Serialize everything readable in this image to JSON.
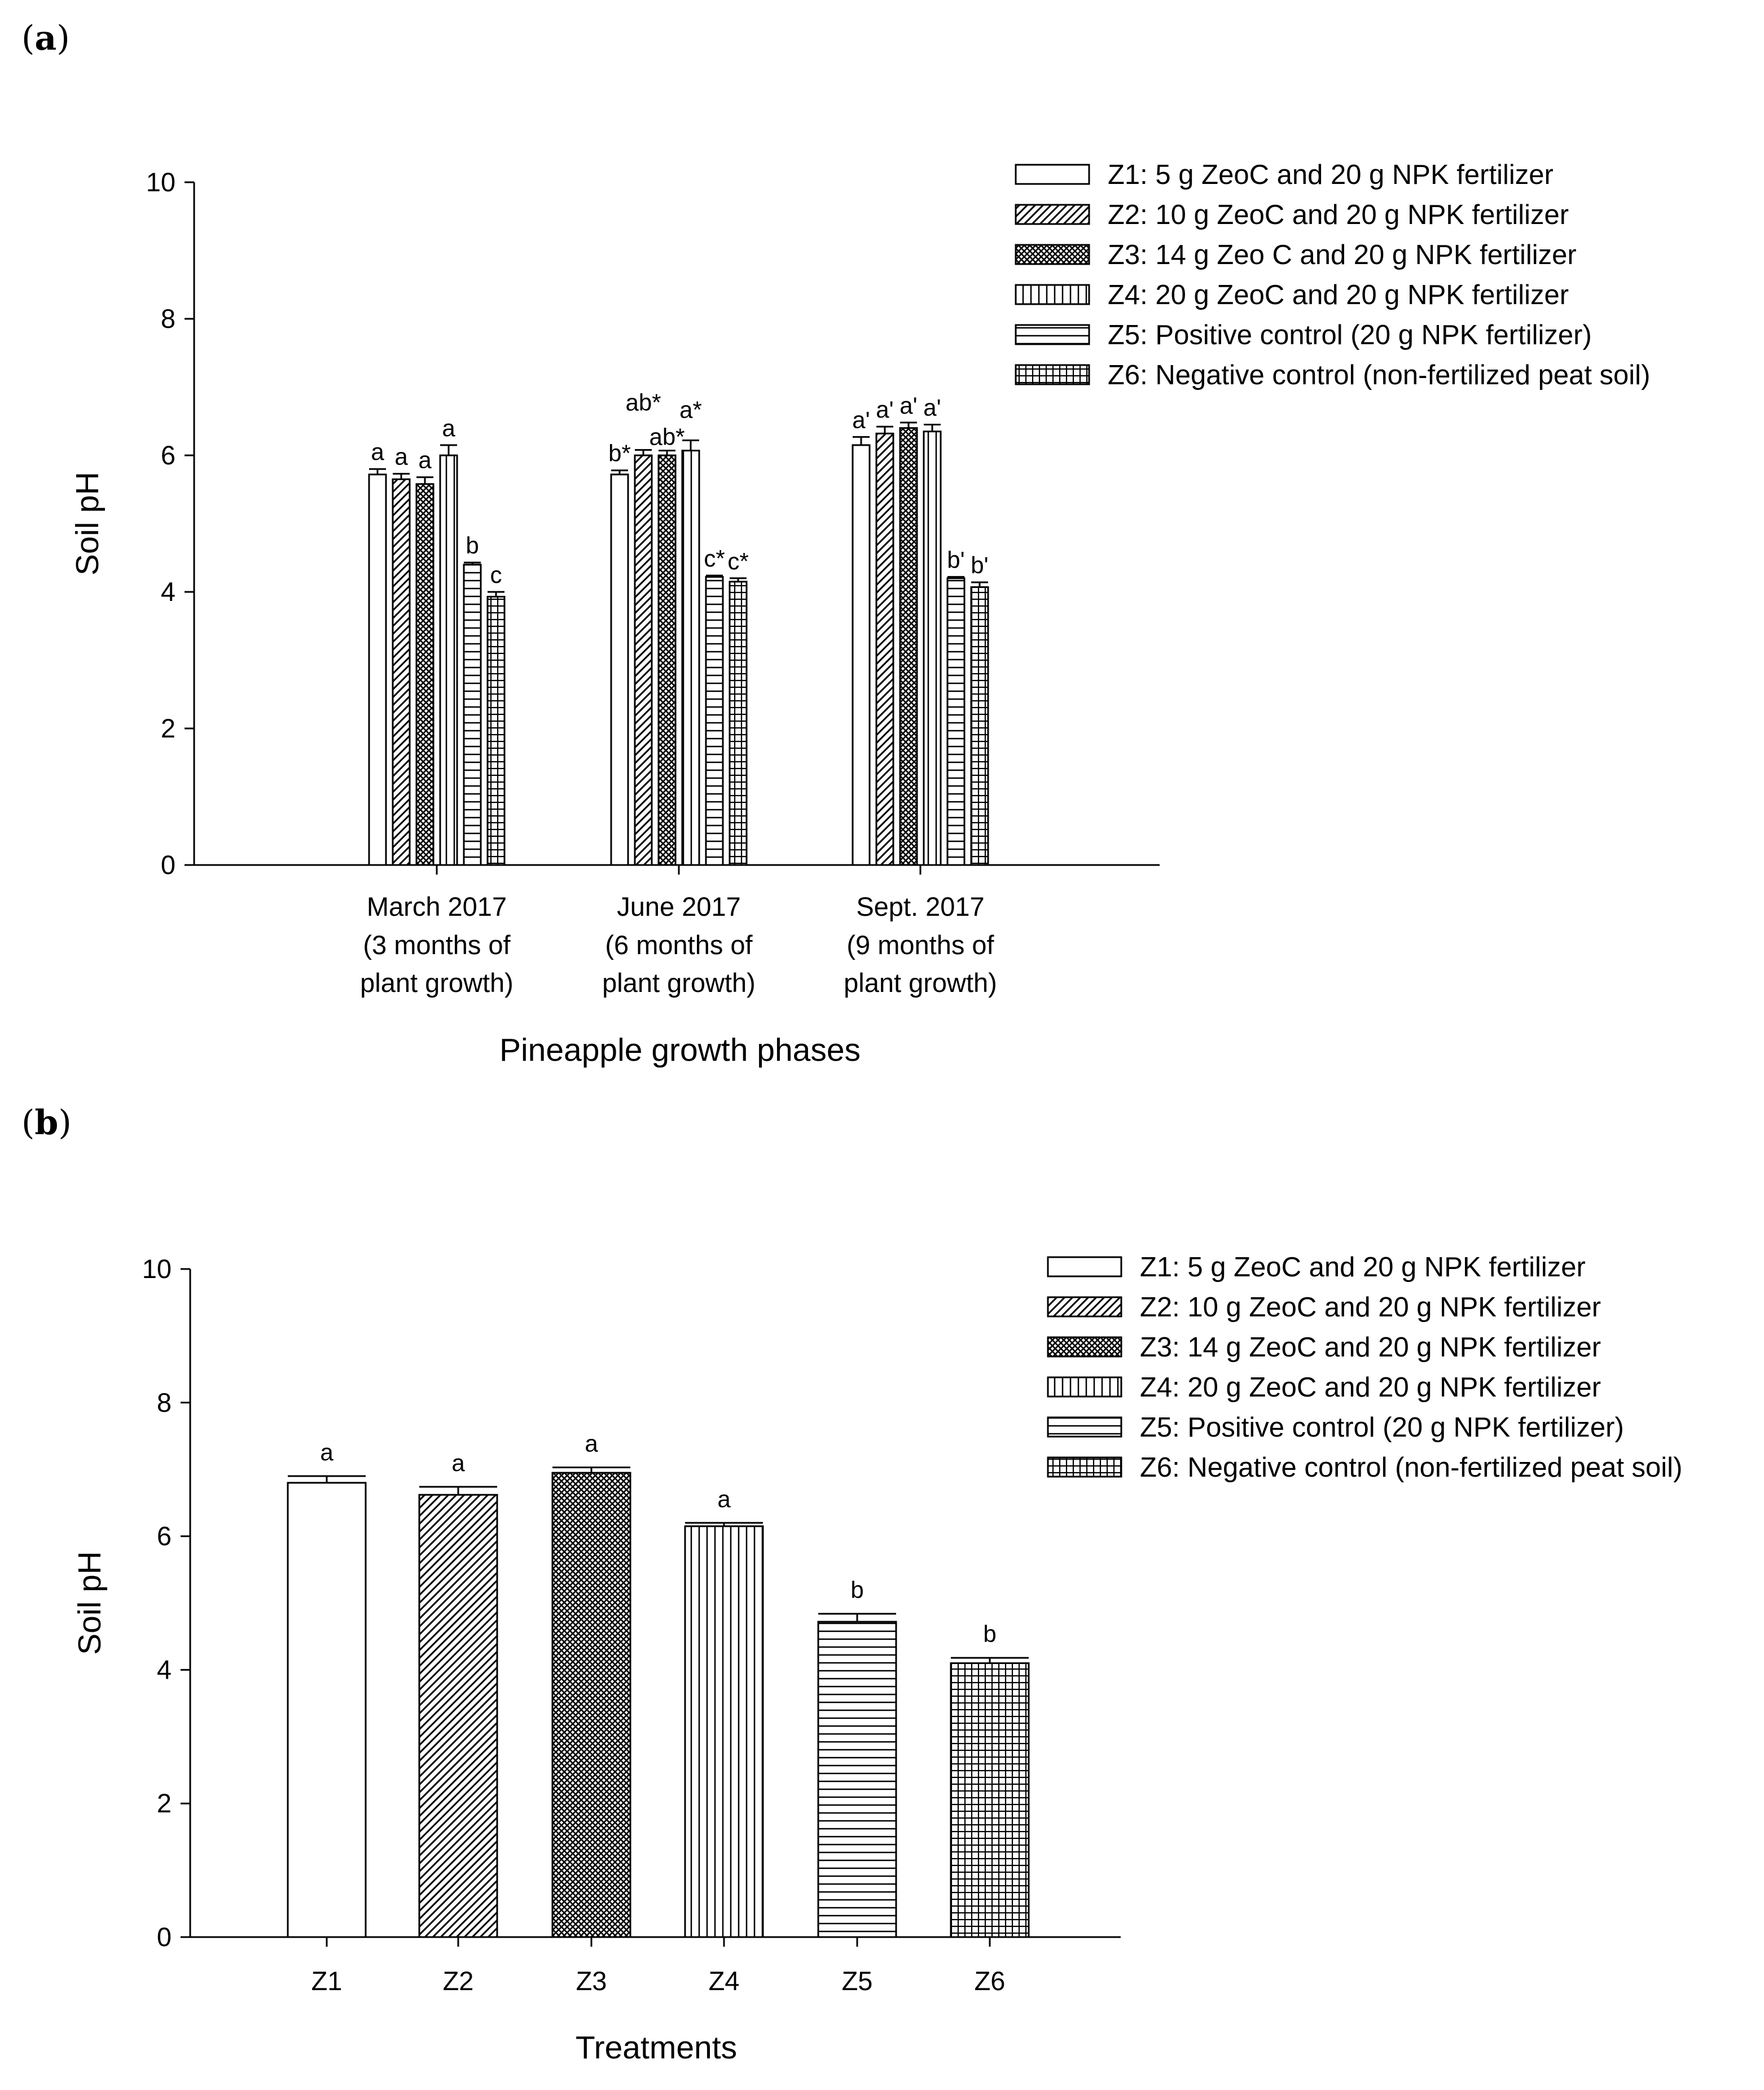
{
  "panels": [
    {
      "label_prefix": "(",
      "label_letter": "a",
      "label_suffix": ")"
    },
    {
      "label_prefix": "(",
      "label_letter": "b",
      "label_suffix": ")"
    }
  ],
  "chart_data": [
    {
      "type": "bar",
      "title": "",
      "xlabel": "Pineapple growth phases",
      "ylabel": "Soil pH",
      "ylim": [
        0,
        10
      ],
      "yticks": [
        "0",
        "2",
        "4",
        "6",
        "8",
        "10"
      ],
      "categories": [
        [
          "March 2017",
          "(3 months of",
          "plant growth)"
        ],
        [
          "June 2017",
          "(6 months of",
          "plant growth)"
        ],
        [
          "Sept. 2017",
          "(9 months of",
          "plant growth)"
        ]
      ],
      "series": [
        {
          "name": "Z1: 5 g ZeoC and 20 g NPK fertilizer",
          "pattern": "solid",
          "values": [
            5.72,
            5.72,
            6.15
          ],
          "errors": [
            0.08,
            0.06,
            0.12
          ],
          "letters": [
            "a",
            "b*",
            "a'"
          ]
        },
        {
          "name": "Z2: 10 g ZeoC and 20 g NPK fertilizer",
          "pattern": "diagonal",
          "values": [
            5.65,
            6.0,
            6.32
          ],
          "errors": [
            0.08,
            0.08,
            0.1
          ],
          "letters": [
            "a",
            "ab*",
            "a'"
          ]
        },
        {
          "name": "Z3: 14 g Zeo C and 20 g NPK fertilizer",
          "pattern": "crosshatch",
          "values": [
            5.58,
            6.0,
            6.4
          ],
          "errors": [
            0.1,
            0.07,
            0.08
          ],
          "letters": [
            "a",
            "ab*",
            "a'"
          ]
        },
        {
          "name": "Z4: 20 g ZeoC and 20 g NPK fertilizer",
          "pattern": "vertical",
          "values": [
            6.0,
            6.07,
            6.35
          ],
          "errors": [
            0.15,
            0.15,
            0.1
          ],
          "letters": [
            "a",
            "a*",
            "a'"
          ]
        },
        {
          "name": "Z5: Positive control (20 g NPK fertilizer)",
          "pattern": "horizontal",
          "values": [
            4.4,
            4.22,
            4.2
          ],
          "errors": [
            0.03,
            0.02,
            0.02
          ],
          "letters": [
            "b",
            "c*",
            "b'"
          ]
        },
        {
          "name": "Z6: Negative control (non-fertilized peat soil)",
          "pattern": "grid",
          "values": [
            3.93,
            4.15,
            4.07
          ],
          "errors": [
            0.07,
            0.05,
            0.07
          ],
          "letters": [
            "c",
            "c*",
            "b'"
          ]
        }
      ]
    },
    {
      "type": "bar",
      "title": "",
      "xlabel": "Treatments",
      "ylabel": "Soil pH",
      "ylim": [
        0,
        10
      ],
      "yticks": [
        "0",
        "2",
        "4",
        "6",
        "8",
        "10"
      ],
      "categories": [
        "Z1",
        "Z2",
        "Z3",
        "Z4",
        "Z5",
        "Z6"
      ],
      "patterns": [
        "solid",
        "diagonal",
        "crosshatch",
        "vertical",
        "horizontal",
        "grid"
      ],
      "values": [
        6.8,
        6.62,
        6.95,
        6.15,
        4.72,
        4.1
      ],
      "errors": [
        0.1,
        0.12,
        0.08,
        0.05,
        0.12,
        0.08
      ],
      "letters": [
        "a",
        "a",
        "a",
        "a",
        "b",
        "b"
      ],
      "legend": [
        "Z1: 5 g ZeoC and 20 g NPK fertilizer",
        "Z2: 10 g ZeoC and 20 g NPK fertilizer",
        "Z3: 14 g ZeoC and 20 g NPK fertilizer",
        "Z4: 20 g ZeoC and 20 g NPK fertilizer",
        "Z5: Positive control (20 g NPK fertilizer)",
        "Z6: Negative control (non-fertilized peat soil)"
      ]
    }
  ]
}
